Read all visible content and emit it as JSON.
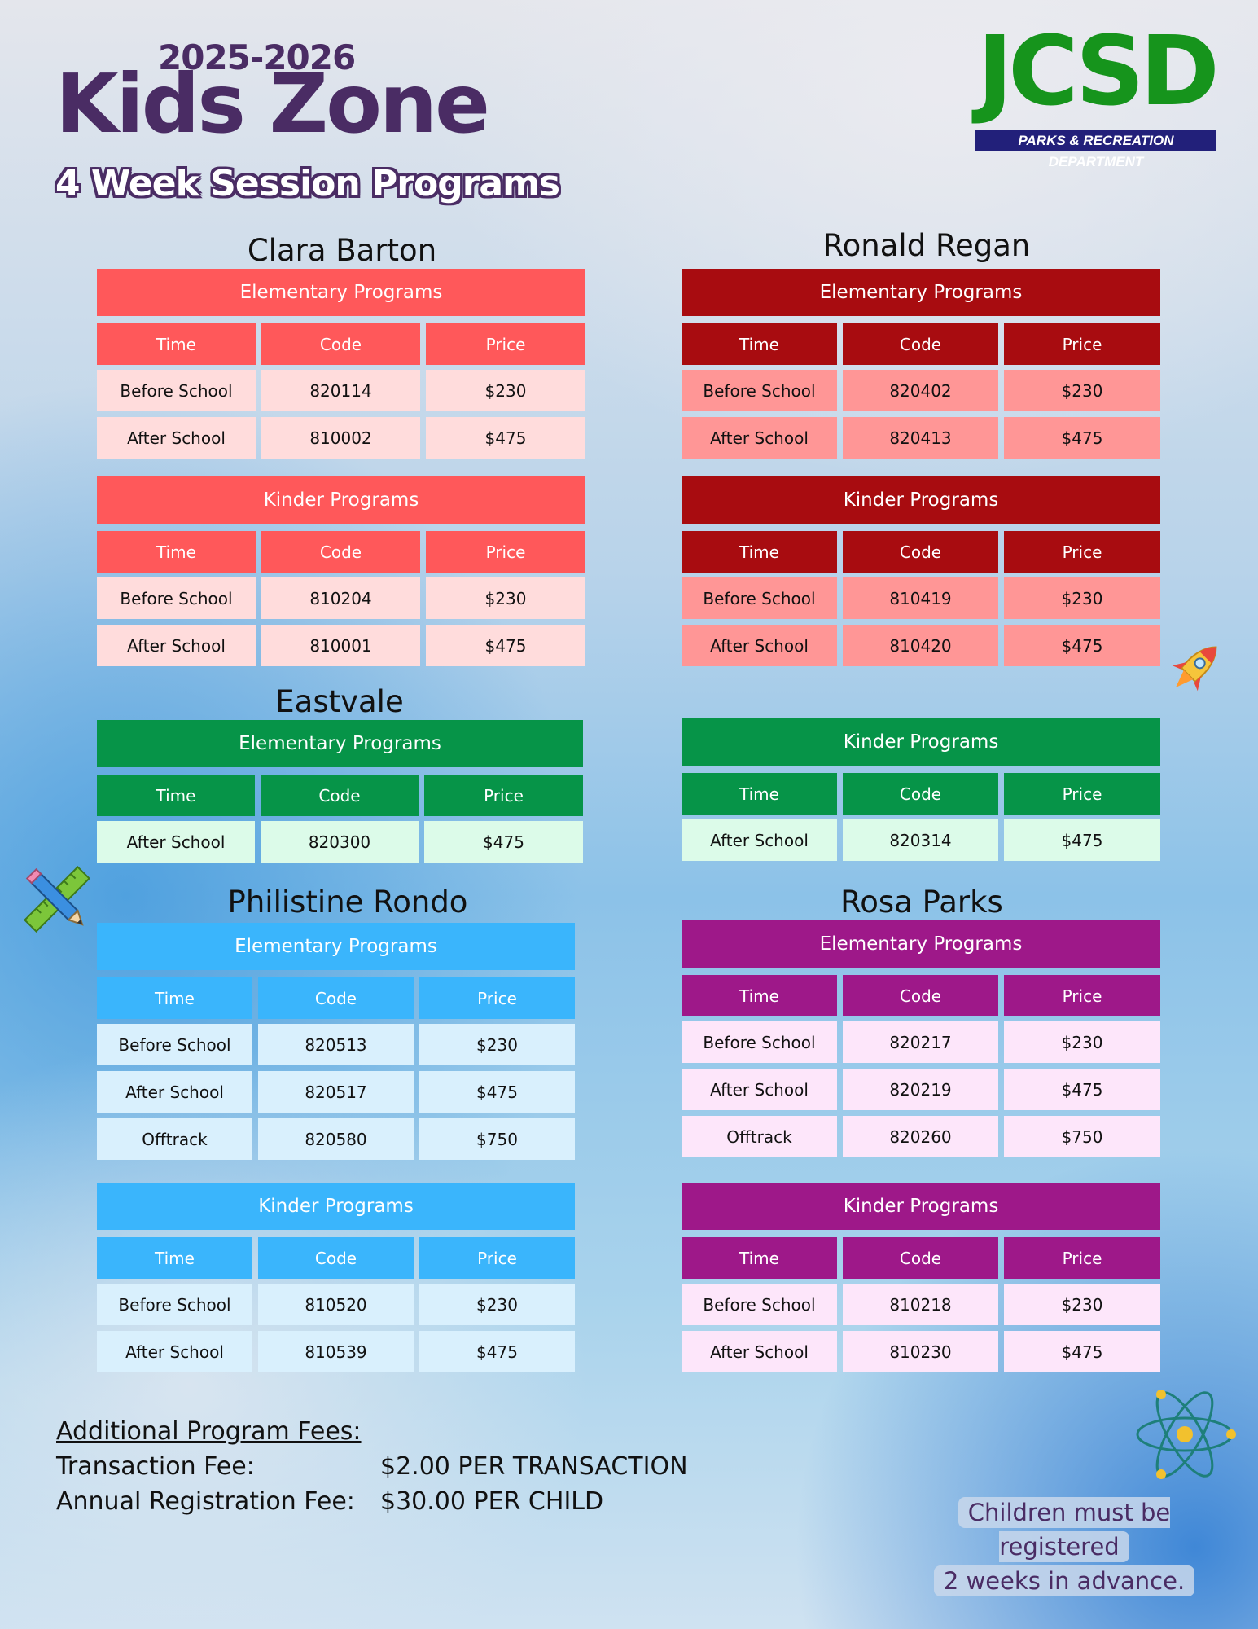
{
  "header": {
    "year": "2025-2026",
    "title": "Kids Zone",
    "subtitle": "4 Week Session Programs"
  },
  "logo": {
    "text": "JCSD",
    "tagline": "PARKS & RECREATION DEPARTMENT",
    "green": "#16941c",
    "navy": "#22207a"
  },
  "column_headers": {
    "time": "Time",
    "code": "Code",
    "price": "Price"
  },
  "schools": {
    "clara_barton": {
      "name": "Clara Barton",
      "colors": {
        "head": "#ff585a",
        "row": "#ffdcdc"
      },
      "elementary": {
        "label": "Elementary Programs",
        "rows": [
          {
            "time": "Before School",
            "code": "820114",
            "price": "$230"
          },
          {
            "time": "After School",
            "code": "810002",
            "price": "$475"
          }
        ]
      },
      "kinder": {
        "label": "Kinder Programs",
        "rows": [
          {
            "time": "Before School",
            "code": "810204",
            "price": "$230"
          },
          {
            "time": "After School",
            "code": "810001",
            "price": "$475"
          }
        ]
      }
    },
    "ronald_regan": {
      "name": "Ronald Regan",
      "colors": {
        "head": "#a80c10",
        "row": "#ff9696"
      },
      "elementary": {
        "label": "Elementary Programs",
        "rows": [
          {
            "time": "Before School",
            "code": "820402",
            "price": "$230"
          },
          {
            "time": "After School",
            "code": "820413",
            "price": "$475"
          }
        ]
      },
      "kinder": {
        "label": "Kinder Programs",
        "rows": [
          {
            "time": "Before School",
            "code": "810419",
            "price": "$230"
          },
          {
            "time": "After School",
            "code": "810420",
            "price": "$475"
          }
        ]
      }
    },
    "eastvale": {
      "name": "Eastvale",
      "colors": {
        "head": "#069448",
        "row": "#dcfbe9"
      },
      "elementary": {
        "label": "Elementary Programs",
        "rows": [
          {
            "time": "After School",
            "code": "820300",
            "price": "$475"
          }
        ]
      },
      "kinder": {
        "label": "Kinder Programs",
        "rows": [
          {
            "time": "After School",
            "code": "820314",
            "price": "$475"
          }
        ]
      }
    },
    "philistine_rondo": {
      "name": "Philistine Rondo",
      "colors": {
        "head": "#3ab5fc",
        "row": "#d9f0fd"
      },
      "elementary": {
        "label": "Elementary Programs",
        "rows": [
          {
            "time": "Before School",
            "code": "820513",
            "price": "$230"
          },
          {
            "time": "After School",
            "code": "820517",
            "price": "$475"
          },
          {
            "time": "Offtrack",
            "code": "820580",
            "price": "$750"
          }
        ]
      },
      "kinder": {
        "label": "Kinder Programs",
        "rows": [
          {
            "time": "Before School",
            "code": "810520",
            "price": "$230"
          },
          {
            "time": "After School",
            "code": "810539",
            "price": "$475"
          }
        ]
      }
    },
    "rosa_parks": {
      "name": "Rosa Parks",
      "colors": {
        "head": "#9e1889",
        "row": "#fde6fa"
      },
      "elementary": {
        "label": "Elementary Programs",
        "rows": [
          {
            "time": "Before School",
            "code": "820217",
            "price": "$230"
          },
          {
            "time": "After School",
            "code": "820219",
            "price": "$475"
          },
          {
            "time": "Offtrack",
            "code": "820260",
            "price": "$750"
          }
        ]
      },
      "kinder": {
        "label": "Kinder Programs",
        "rows": [
          {
            "time": "Before School",
            "code": "810218",
            "price": "$230"
          },
          {
            "time": "After School",
            "code": "810230",
            "price": "$475"
          }
        ]
      }
    }
  },
  "fees": {
    "title": "Additional Program Fees:",
    "items": [
      {
        "label": "Transaction Fee:",
        "value": "$2.00 PER TRANSACTION"
      },
      {
        "label": "Annual Registration Fee:",
        "value": "$30.00 PER CHILD"
      }
    ]
  },
  "note": {
    "line1": "Children must be registered",
    "line2": "2 weeks in advance."
  },
  "decorations": [
    "rocket-icon",
    "pencil-ruler-icon",
    "atom-icon"
  ]
}
